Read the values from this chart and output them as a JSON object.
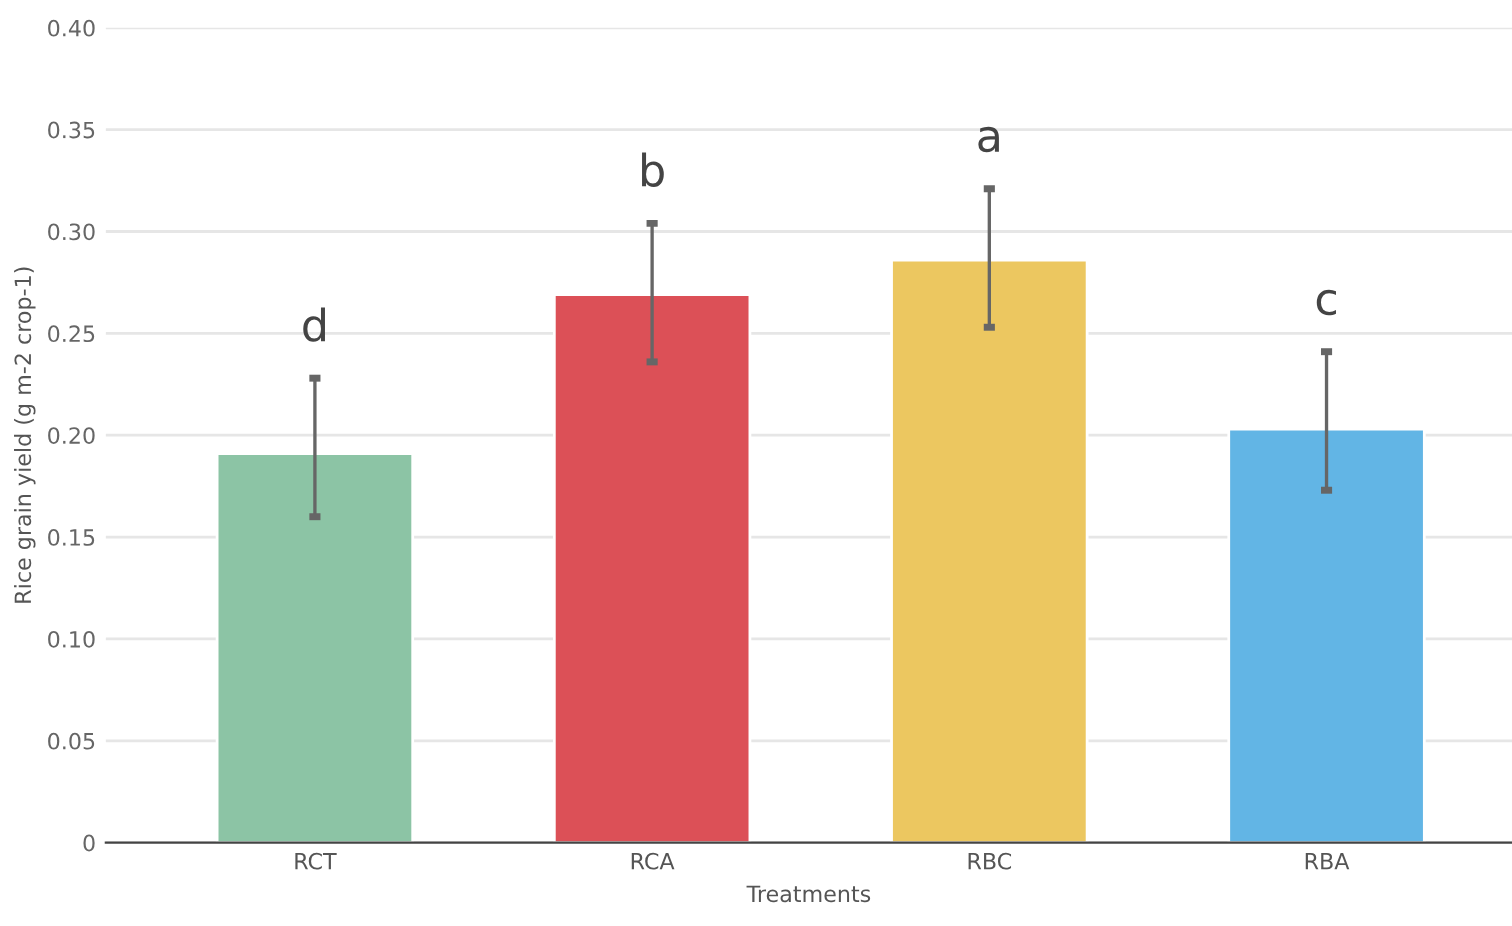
{
  "chart_data": {
    "type": "bar",
    "xlabel": "Treatments",
    "ylabel": "Rice grain yield (g m-2 crop-1)",
    "categories": [
      "RCT",
      "RCA",
      "RBC",
      "RBA"
    ],
    "values": [
      0.191,
      0.269,
      0.286,
      0.203
    ],
    "colors": [
      "#8cc4a5",
      "#dc5057",
      "#ecc760",
      "#62b5e5"
    ],
    "errors": [
      [
        0.16,
        0.228
      ],
      [
        0.236,
        0.304
      ],
      [
        0.253,
        0.321
      ],
      [
        0.173,
        0.241
      ]
    ],
    "ylim": [
      0,
      0.4
    ],
    "yticks": [
      {
        "value": 0,
        "label": "0"
      },
      0.05,
      {
        "value": 0.1,
        "label": "0.10"
      },
      0.15,
      {
        "value": 0.2,
        "label": "0.20"
      },
      0.25,
      {
        "value": 0.3,
        "label": "0.30"
      },
      0.35,
      {
        "value": 0.4,
        "label": "0.40"
      }
    ],
    "grid": "y",
    "annotations": [
      "d",
      "b",
      "a",
      "c"
    ]
  }
}
